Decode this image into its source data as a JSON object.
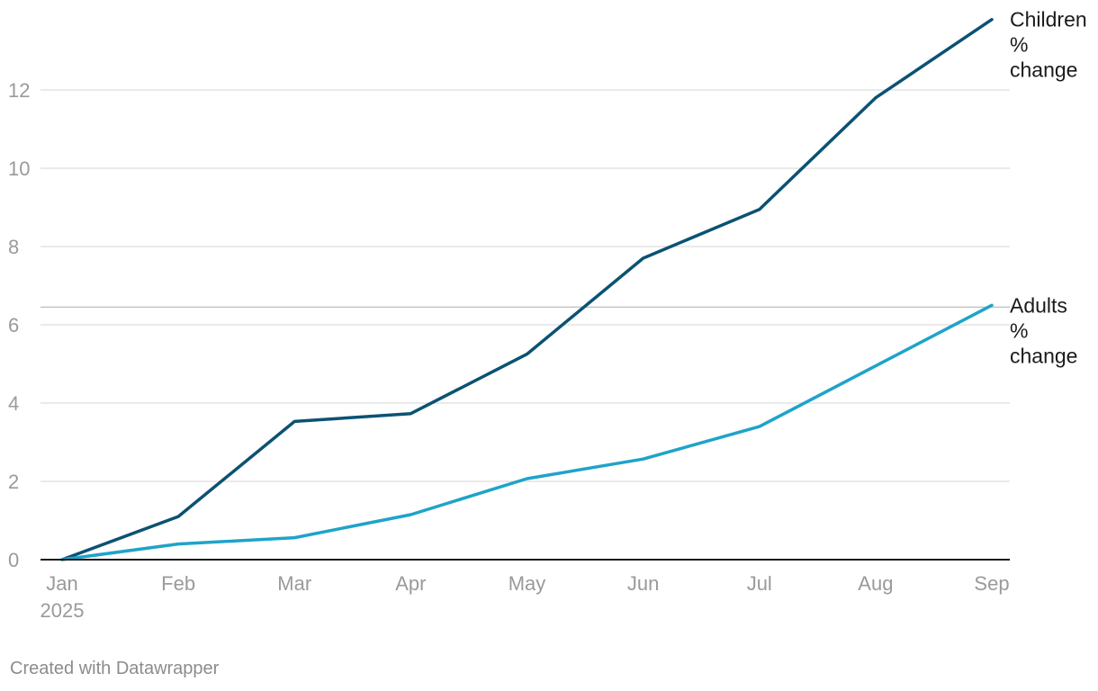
{
  "chart_data": {
    "type": "line",
    "title": "",
    "xlabel": "",
    "ylabel": "",
    "categories": [
      "Jan\n2025",
      "Feb",
      "Mar",
      "Apr",
      "May",
      "Jun",
      "Jul",
      "Aug",
      "Sep"
    ],
    "series": [
      {
        "name": "Children\n%\nchange",
        "color": "#0b5273",
        "values": [
          0,
          1.1,
          3.53,
          3.73,
          5.25,
          7.7,
          8.95,
          11.8,
          13.8
        ]
      },
      {
        "name": "Adults\n%\nchange",
        "color": "#1fa3c9",
        "values": [
          0,
          0.4,
          0.56,
          1.15,
          2.07,
          2.57,
          3.4,
          4.95,
          6.5
        ]
      }
    ],
    "yticks": [
      0,
      2,
      4,
      6,
      8,
      10,
      12
    ],
    "ylim": [
      0,
      14
    ],
    "reference_line": 6.45,
    "grid": true,
    "legend": "line-end labels on right"
  },
  "footer": {
    "credit": "Created with Datawrapper"
  }
}
